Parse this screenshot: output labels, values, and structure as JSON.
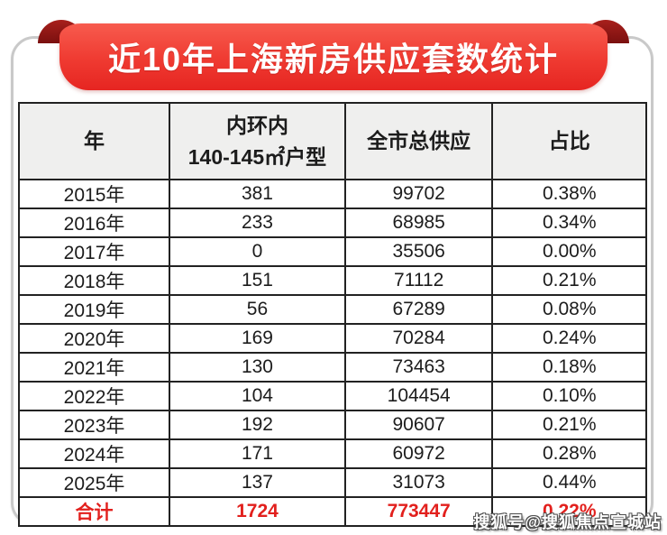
{
  "banner": {
    "title": "近10年上海新房供应套数统计"
  },
  "table": {
    "header": {
      "col1": "年",
      "col2_line1": "内环内",
      "col2_line2": "140-145㎡户型",
      "col3": "全市总供应",
      "col4": "占比"
    },
    "rows": [
      {
        "year": "2015年",
        "inner": "381",
        "citywide": "99702",
        "ratio": "0.38%"
      },
      {
        "year": "2016年",
        "inner": "233",
        "citywide": "68985",
        "ratio": "0.34%"
      },
      {
        "year": "2017年",
        "inner": "0",
        "citywide": "35506",
        "ratio": "0.00%"
      },
      {
        "year": "2018年",
        "inner": "151",
        "citywide": "71112",
        "ratio": "0.21%"
      },
      {
        "year": "2019年",
        "inner": "56",
        "citywide": "67289",
        "ratio": "0.08%"
      },
      {
        "year": "2020年",
        "inner": "169",
        "citywide": "70284",
        "ratio": "0.24%"
      },
      {
        "year": "2021年",
        "inner": "130",
        "citywide": "73463",
        "ratio": "0.18%"
      },
      {
        "year": "2022年",
        "inner": "104",
        "citywide": "104454",
        "ratio": "0.10%"
      },
      {
        "year": "2023年",
        "inner": "192",
        "citywide": "90607",
        "ratio": "0.21%"
      },
      {
        "year": "2024年",
        "inner": "171",
        "citywide": "60972",
        "ratio": "0.28%"
      },
      {
        "year": "2025年",
        "inner": "137",
        "citywide": "31073",
        "ratio": "0.44%"
      }
    ],
    "total": {
      "label": "合计",
      "inner": "1724",
      "citywide": "773447",
      "ratio": "0.22%"
    }
  },
  "watermark": "搜狐号@搜狐焦点宣城站",
  "colors": {
    "ribbon_top": "#f75b4e",
    "ribbon_bottom": "#e62521",
    "ribbon_fold": "#8c1613",
    "total_text": "#e2201d",
    "header_bg": "#efefee",
    "table_border": "#222222",
    "card_border": "#c9c9c9"
  },
  "chart_data": {
    "type": "table",
    "title": "近10年上海新房供应套数统计",
    "columns": [
      "年",
      "内环内140-145㎡户型",
      "全市总供应",
      "占比"
    ],
    "rows": [
      [
        "2015年",
        381,
        99702,
        "0.38%"
      ],
      [
        "2016年",
        233,
        68985,
        "0.34%"
      ],
      [
        "2017年",
        0,
        35506,
        "0.00%"
      ],
      [
        "2018年",
        151,
        71112,
        "0.21%"
      ],
      [
        "2019年",
        56,
        67289,
        "0.08%"
      ],
      [
        "2020年",
        169,
        70284,
        "0.24%"
      ],
      [
        "2021年",
        130,
        73463,
        "0.18%"
      ],
      [
        "2022年",
        104,
        104454,
        "0.10%"
      ],
      [
        "2023年",
        192,
        90607,
        "0.21%"
      ],
      [
        "2024年",
        171,
        60972,
        "0.28%"
      ],
      [
        "2025年",
        137,
        31073,
        "0.44%"
      ],
      [
        "合计",
        1724,
        773447,
        "0.22%"
      ]
    ]
  }
}
